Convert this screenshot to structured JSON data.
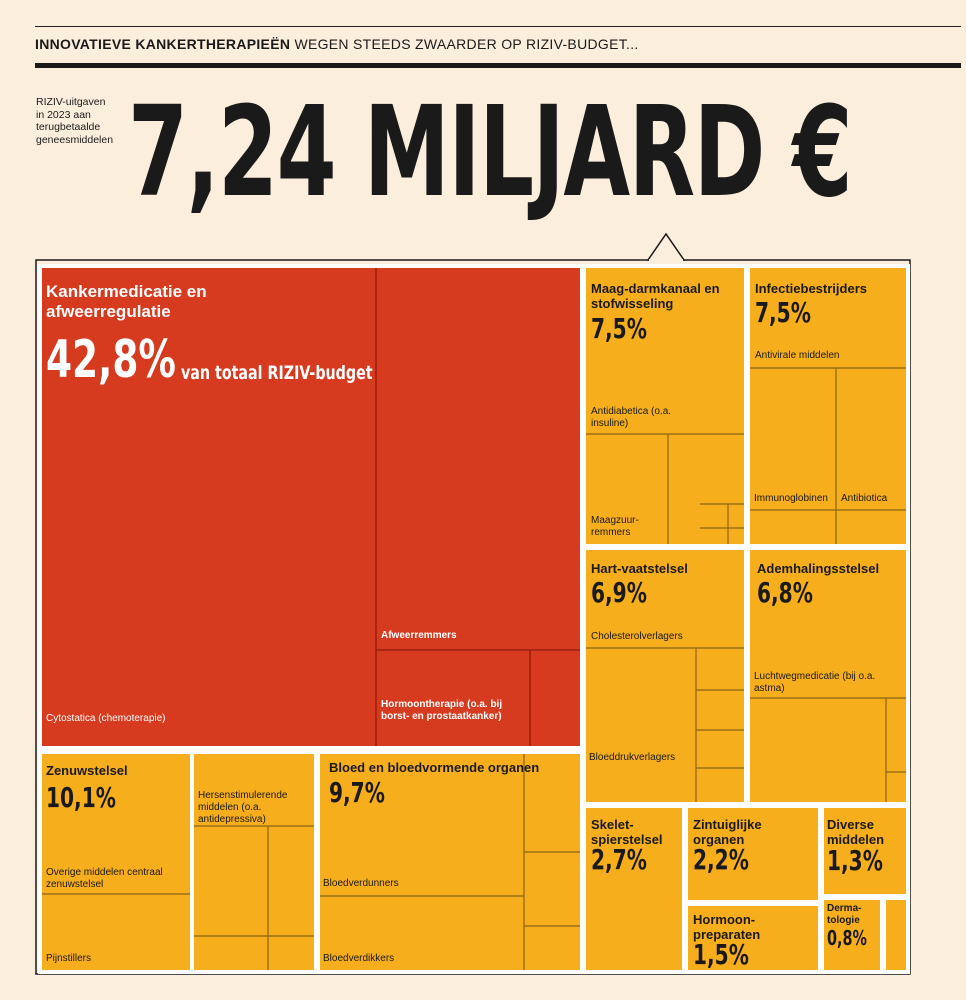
{
  "header": {
    "kicker_bold": "INNOVATIEVE KANKERTHERAPIEËN",
    "kicker_rest": " WEGEN STEEDS ZWAARDER OP RIZIV-BUDGET...",
    "note_lines": [
      "RIZIV-uitgaven",
      "in 2023 aan",
      "terugbetaalde",
      "geneesmiddelen"
    ],
    "headline": "7,24 MILJARD €"
  },
  "colors": {
    "background": "#fbeedd",
    "cancer": "#d63a1f",
    "other": "#f7ae1c",
    "text": "#1a1a1a"
  },
  "chart_data": {
    "type": "treemap",
    "total": "7,24 MILJARD €",
    "unit": "% van totaal RIZIV-budget",
    "categories": [
      {
        "name": "Kankermedicatie en afweerregulatie",
        "value": 42.8,
        "value_label": "42,8%",
        "value_suffix": "van totaal RIZIV-budget",
        "subgroups": [
          "Cytostatica (chemoterapie)",
          "Afweerremmers",
          "Hormoontherapie (o.a. bij borst- en prostaatkanker)"
        ]
      },
      {
        "name": "Zenuwstelsel",
        "value": 10.1,
        "value_label": "10,1%",
        "subgroups": [
          "Hersenstimulerende middelen (o.a. antidepressiva)",
          "Overige middelen centraal zenuwstelsel",
          "Pijnstillers"
        ]
      },
      {
        "name": "Bloed en bloedvormende organen",
        "value": 9.7,
        "value_label": "9,7%",
        "subgroups": [
          "Bloedverdunners",
          "Bloedverdikkers"
        ]
      },
      {
        "name": "Maag-darmkanaal en stofwisseling",
        "value": 7.5,
        "value_label": "7,5%",
        "subgroups": [
          "Antidiabetica (o.a. insuline)",
          "Maagzuur-remmers"
        ]
      },
      {
        "name": "Infectiebestrijders",
        "value": 7.5,
        "value_label": "7,5%",
        "subgroups": [
          "Antivirale middelen",
          "Immunoglobinen",
          "Antibiotica"
        ]
      },
      {
        "name": "Hart-vaatstelsel",
        "value": 6.9,
        "value_label": "6,9%",
        "subgroups": [
          "Cholesterolverlagers",
          "Bloeddrukverlagers"
        ]
      },
      {
        "name": "Ademhalingsstelsel",
        "value": 6.8,
        "value_label": "6,8%",
        "subgroups": [
          "Luchtwegmedicatie (bij o.a. astma)"
        ]
      },
      {
        "name": "Skelet-spierstelsel",
        "value": 2.7,
        "value_label": "2,7%",
        "subgroups": []
      },
      {
        "name": "Zintuiglijke organen",
        "value": 2.2,
        "value_label": "2,2%",
        "subgroups": []
      },
      {
        "name": "Diverse middelen",
        "value": 1.3,
        "value_label": "1,3%",
        "subgroups": []
      },
      {
        "name": "Hormoon-preparaten",
        "value": 1.5,
        "value_label": "1,5%",
        "subgroups": []
      },
      {
        "name": "Derma-tologie",
        "value": 0.8,
        "value_label": "0,8%",
        "subgroups": []
      }
    ]
  }
}
